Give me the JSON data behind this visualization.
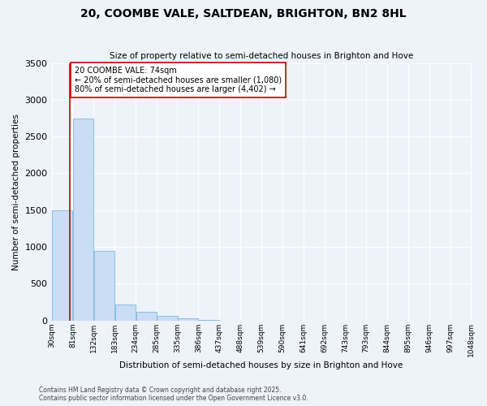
{
  "title": "20, COOMBE VALE, SALTDEAN, BRIGHTON, BN2 8HL",
  "subtitle": "Size of property relative to semi-detached houses in Brighton and Hove",
  "xlabel": "Distribution of semi-detached houses by size in Brighton and Hove",
  "ylabel": "Number of semi-detached properties",
  "bar_values": [
    1500,
    2750,
    950,
    220,
    120,
    60,
    30,
    8,
    0,
    0,
    0,
    0,
    0,
    0,
    0,
    0,
    0,
    0,
    0,
    0
  ],
  "bar_color": "#c9ddf5",
  "bar_edge_color": "#6baed6",
  "categories": [
    "30sqm",
    "81sqm",
    "132sqm",
    "183sqm",
    "234sqm",
    "285sqm",
    "335sqm",
    "386sqm",
    "437sqm",
    "488sqm",
    "539sqm",
    "590sqm",
    "641sqm",
    "692sqm",
    "743sqm",
    "793sqm",
    "844sqm",
    "895sqm",
    "946sqm",
    "997sqm",
    "1048sqm"
  ],
  "ylim": [
    0,
    3500
  ],
  "yticks": [
    0,
    500,
    1000,
    1500,
    2000,
    2500,
    3000,
    3500
  ],
  "property_line_x": 74,
  "bin_edges": [
    30,
    81,
    132,
    183,
    234,
    285,
    335,
    386,
    437,
    488,
    539,
    590,
    641,
    692,
    743,
    793,
    844,
    895,
    946,
    997,
    1048
  ],
  "annotation_title": "20 COOMBE VALE: 74sqm",
  "annotation_line1": "← 20% of semi-detached houses are smaller (1,080)",
  "annotation_line2": "80% of semi-detached houses are larger (4,402) →",
  "footer_line1": "Contains HM Land Registry data © Crown copyright and database right 2025.",
  "footer_line2": "Contains public sector information licensed under the Open Government Licence v3.0.",
  "background_color": "#eef2f9",
  "grid_color": "#ffffff",
  "property_line_color": "#cc0000"
}
